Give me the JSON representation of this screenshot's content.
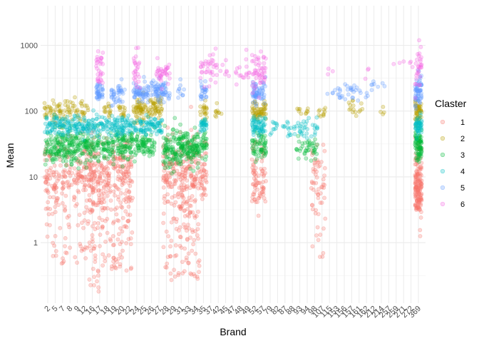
{
  "chart_data": {
    "type": "scatter",
    "title": "",
    "xlabel": "Brand",
    "ylabel": "Mean",
    "y_scale": "log10",
    "ylim": [
      0.12,
      4000
    ],
    "y_ticks": [
      1,
      10,
      100,
      1000
    ],
    "y_tick_labels": [
      "1",
      "10",
      "100",
      "1000"
    ],
    "grid": true,
    "legend_position": "right",
    "legend_title": "Claster",
    "categories": [
      "2",
      "5",
      "7",
      "8",
      "9",
      "12",
      "16",
      "17",
      "18",
      "19",
      "20",
      "22",
      "24",
      "25",
      "26",
      "27",
      "28",
      "29",
      "31",
      "33",
      "34",
      "35",
      "37",
      "42",
      "45",
      "47",
      "48",
      "49",
      "52",
      "57",
      "79",
      "82",
      "87",
      "88",
      "93",
      "94",
      "98",
      "107",
      "115",
      "153",
      "156",
      "157",
      "161",
      "162",
      "212",
      "214",
      "257",
      "259",
      "271",
      "272",
      "369"
    ],
    "x_tick_labels": [
      "2",
      "5",
      "7",
      "8",
      "9",
      "12",
      "16",
      "17",
      "18",
      "19",
      "20",
      "22",
      "24",
      "25",
      "26",
      "27",
      "28",
      "29",
      "31",
      "33",
      "34",
      "35",
      "37",
      "42",
      "45",
      "47",
      "48",
      "49",
      "52",
      "57",
      "79",
      "82",
      "87",
      "88",
      "93",
      "94",
      "98",
      "107",
      "115",
      "153",
      "156",
      "157",
      "161",
      "162",
      "212",
      "214",
      "257",
      "259",
      "271",
      "272",
      "369"
    ],
    "series": [
      {
        "name": "1",
        "color": "#F8766D",
        "clusters": [
          {
            "from": "2",
            "to": "16",
            "center": 12,
            "n": 260,
            "spread": 0.28,
            "tail": 0.85,
            "tail_min": 0.25
          },
          {
            "from": "16",
            "to": "17",
            "center": 11,
            "n": 120,
            "spread": 0.26,
            "tail": 1.0,
            "tail_min": 0.18
          },
          {
            "from": "18",
            "to": "22",
            "center": 12,
            "n": 220,
            "spread": 0.26,
            "tail": 0.95,
            "tail_min": 0.3
          },
          {
            "from": "28",
            "to": "29",
            "center": 11,
            "n": 110,
            "spread": 0.3,
            "tail": 1.0,
            "tail_min": 0.25
          },
          {
            "from": "31",
            "to": "34",
            "center": 12,
            "n": 200,
            "spread": 0.28,
            "tail": 1.0,
            "tail_min": 0.25
          },
          {
            "from": "35",
            "to": "35",
            "center": 12,
            "n": 40,
            "spread": 0.3,
            "tail": 0.6,
            "tail_min": 3
          },
          {
            "from": "52",
            "to": "57",
            "center": 13,
            "n": 80,
            "spread": 0.25,
            "tail": 0.6,
            "tail_min": 1.7
          },
          {
            "from": "98",
            "to": "107",
            "center": 10,
            "n": 60,
            "spread": 0.3,
            "tail": 0.8,
            "tail_min": 0.3
          },
          {
            "from": "369",
            "to": "369",
            "center": 9,
            "n": 160,
            "spread": 0.32,
            "tail": 0.6,
            "tail_min": 1.6
          }
        ]
      },
      {
        "name": "2",
        "color": "#B79F00",
        "clusters": [
          {
            "from": "2",
            "to": "12",
            "center": 100,
            "n": 90,
            "spread": 0.08
          },
          {
            "from": "18",
            "to": "18",
            "center": 100,
            "n": 15,
            "spread": 0.06
          },
          {
            "from": "20",
            "to": "20",
            "center": 100,
            "n": 15,
            "spread": 0.06
          },
          {
            "from": "24",
            "to": "27",
            "center": 105,
            "n": 110,
            "spread": 0.09
          },
          {
            "from": "35",
            "to": "35",
            "center": 100,
            "n": 20,
            "spread": 0.07
          },
          {
            "from": "42",
            "to": "42",
            "center": 100,
            "n": 10,
            "spread": 0.06
          },
          {
            "from": "52",
            "to": "57",
            "center": 100,
            "n": 60,
            "spread": 0.07
          },
          {
            "from": "93",
            "to": "94",
            "center": 100,
            "n": 10,
            "spread": 0.05
          },
          {
            "from": "107",
            "to": "107",
            "center": 100,
            "n": 10,
            "spread": 0.05
          },
          {
            "from": "157",
            "to": "161",
            "center": 110,
            "n": 15,
            "spread": 0.08
          },
          {
            "from": "214",
            "to": "214",
            "center": 110,
            "n": 4,
            "spread": 0.05
          },
          {
            "from": "369",
            "to": "369",
            "center": 100,
            "n": 50,
            "spread": 0.08
          }
        ]
      },
      {
        "name": "3",
        "color": "#00BA38",
        "clusters": [
          {
            "from": "2",
            "to": "16",
            "center": 28,
            "n": 240,
            "spread": 0.12
          },
          {
            "from": "17",
            "to": "22",
            "center": 30,
            "n": 150,
            "spread": 0.12
          },
          {
            "from": "24",
            "to": "26",
            "center": 30,
            "n": 80,
            "spread": 0.1
          },
          {
            "from": "28",
            "to": "29",
            "center": 25,
            "n": 80,
            "spread": 0.13
          },
          {
            "from": "31",
            "to": "34",
            "center": 28,
            "n": 140,
            "spread": 0.12
          },
          {
            "from": "35",
            "to": "35",
            "center": 30,
            "n": 30,
            "spread": 0.1
          },
          {
            "from": "52",
            "to": "57",
            "center": 30,
            "n": 60,
            "spread": 0.11
          },
          {
            "from": "93",
            "to": "98",
            "center": 28,
            "n": 40,
            "spread": 0.1
          },
          {
            "from": "369",
            "to": "369",
            "center": 30,
            "n": 80,
            "spread": 0.12
          }
        ]
      },
      {
        "name": "4",
        "color": "#00BFC4",
        "clusters": [
          {
            "from": "2",
            "to": "16",
            "center": 60,
            "n": 160,
            "spread": 0.07
          },
          {
            "from": "17",
            "to": "27",
            "center": 60,
            "n": 200,
            "spread": 0.07
          },
          {
            "from": "35",
            "to": "35",
            "center": 60,
            "n": 30,
            "spread": 0.07
          },
          {
            "from": "52",
            "to": "57",
            "center": 60,
            "n": 60,
            "spread": 0.07
          },
          {
            "from": "79",
            "to": "88",
            "center": 55,
            "n": 25,
            "spread": 0.07
          },
          {
            "from": "93",
            "to": "98",
            "center": 55,
            "n": 30,
            "spread": 0.07
          },
          {
            "from": "369",
            "to": "369",
            "center": 60,
            "n": 50,
            "spread": 0.07
          }
        ]
      },
      {
        "name": "5",
        "color": "#619CFF",
        "clusters": [
          {
            "from": "17",
            "to": "17",
            "center": 200,
            "n": 40,
            "spread": 0.09
          },
          {
            "from": "19",
            "to": "20",
            "center": 190,
            "n": 40,
            "spread": 0.09
          },
          {
            "from": "24",
            "to": "28",
            "center": 200,
            "n": 130,
            "spread": 0.08
          },
          {
            "from": "31",
            "to": "31",
            "center": 200,
            "n": 10,
            "spread": 0.08
          },
          {
            "from": "35",
            "to": "35",
            "center": 200,
            "n": 25,
            "spread": 0.08
          },
          {
            "from": "52",
            "to": "57",
            "center": 200,
            "n": 60,
            "spread": 0.08
          },
          {
            "from": "115",
            "to": "162",
            "center": 200,
            "n": 35,
            "spread": 0.07
          },
          {
            "from": "212",
            "to": "214",
            "center": 220,
            "n": 8,
            "spread": 0.06
          },
          {
            "from": "369",
            "to": "369",
            "center": 200,
            "n": 60,
            "spread": 0.1
          }
        ]
      },
      {
        "name": "6",
        "color": "#F564E3",
        "clusters": [
          {
            "from": "17",
            "to": "17",
            "center": 400,
            "n": 30,
            "spread": 0.15
          },
          {
            "from": "24",
            "to": "24",
            "center": 420,
            "n": 25,
            "spread": 0.15
          },
          {
            "from": "27",
            "to": "28",
            "center": 380,
            "n": 35,
            "spread": 0.1
          },
          {
            "from": "35",
            "to": "37",
            "center": 450,
            "n": 30,
            "spread": 0.12
          },
          {
            "from": "42",
            "to": "49",
            "center": 420,
            "n": 30,
            "spread": 0.12
          },
          {
            "from": "52",
            "to": "57",
            "center": 400,
            "n": 50,
            "spread": 0.14
          },
          {
            "from": "115",
            "to": "115",
            "center": 380,
            "n": 3,
            "spread": 0.05
          },
          {
            "from": "162",
            "to": "162",
            "center": 340,
            "n": 3,
            "spread": 0.05
          },
          {
            "from": "259",
            "to": "272",
            "center": 520,
            "n": 6,
            "spread": 0.05
          },
          {
            "from": "369",
            "to": "369",
            "center": 450,
            "n": 30,
            "spread": 0.15
          }
        ]
      }
    ]
  }
}
